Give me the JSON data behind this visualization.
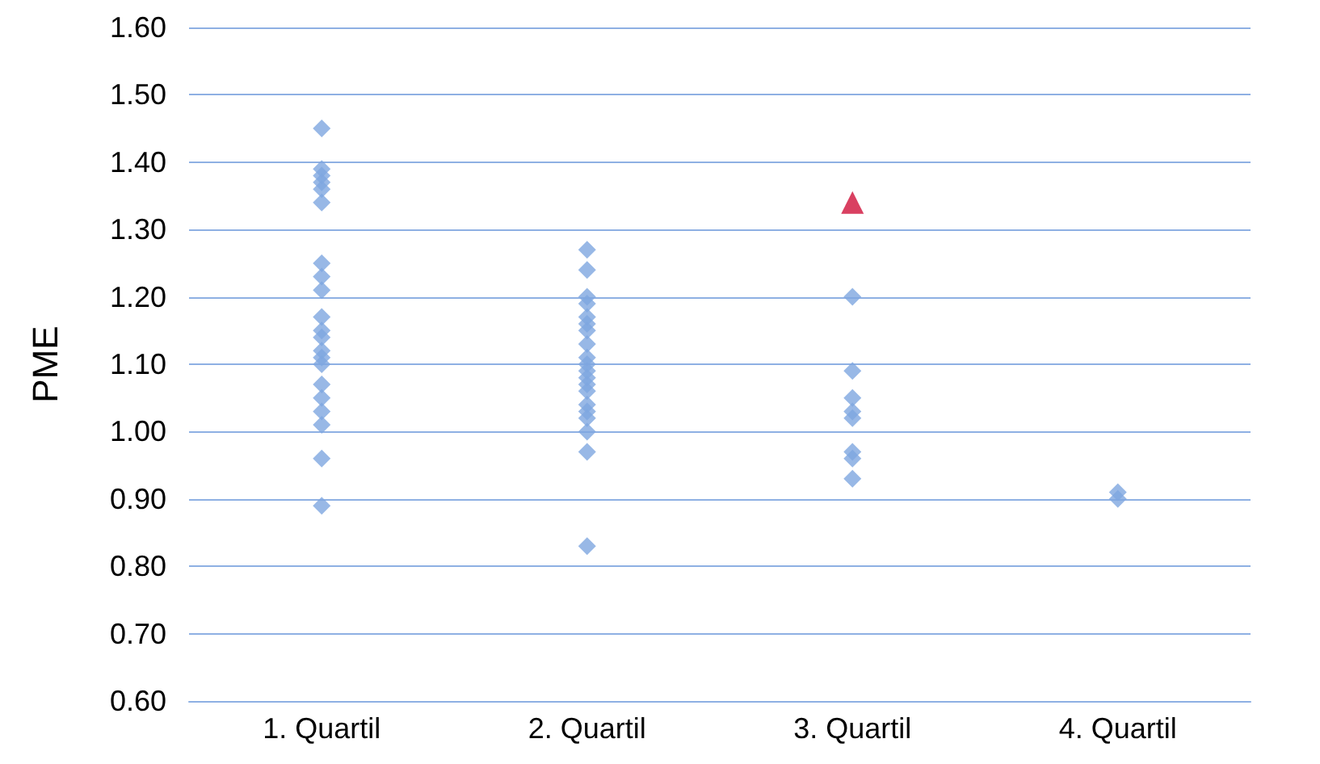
{
  "chart_data": {
    "type": "scatter",
    "ylabel": "PME",
    "categories": [
      "1. Quartil",
      "2. Quartil",
      "3. Quartil",
      "4. Quartil"
    ],
    "series": [
      {
        "color": "#7ea6e0",
        "marker": "diamond",
        "x": [
          "1. Quartil",
          "1. Quartil",
          "1. Quartil",
          "1. Quartil",
          "1. Quartil",
          "1. Quartil",
          "1. Quartil",
          "1. Quartil",
          "1. Quartil",
          "1. Quartil",
          "1. Quartil",
          "1. Quartil",
          "1. Quartil",
          "1. Quartil",
          "1. Quartil",
          "1. Quartil",
          "1. Quartil",
          "1. Quartil",
          "1. Quartil",
          "1. Quartil",
          "1. Quartil",
          "2. Quartil",
          "2. Quartil",
          "2. Quartil",
          "2. Quartil",
          "2. Quartil",
          "2. Quartil",
          "2. Quartil",
          "2. Quartil",
          "2. Quartil",
          "2. Quartil",
          "2. Quartil",
          "2. Quartil",
          "2. Quartil",
          "2. Quartil",
          "2. Quartil",
          "2. Quartil",
          "2. Quartil",
          "2. Quartil",
          "2. Quartil",
          "2. Quartil",
          "3. Quartil",
          "3. Quartil",
          "3. Quartil",
          "3. Quartil",
          "3. Quartil",
          "3. Quartil",
          "3. Quartil",
          "3. Quartil",
          "4. Quartil",
          "4. Quartil"
        ],
        "values": [
          1.45,
          1.39,
          1.38,
          1.37,
          1.36,
          1.34,
          1.25,
          1.23,
          1.21,
          1.17,
          1.15,
          1.14,
          1.12,
          1.11,
          1.1,
          1.07,
          1.05,
          1.03,
          1.01,
          0.96,
          0.89,
          1.27,
          1.24,
          1.2,
          1.19,
          1.17,
          1.16,
          1.15,
          1.13,
          1.11,
          1.1,
          1.09,
          1.08,
          1.07,
          1.06,
          1.04,
          1.03,
          1.02,
          1.0,
          0.97,
          0.83,
          1.2,
          1.09,
          1.05,
          1.03,
          1.02,
          0.97,
          0.96,
          0.93,
          0.91,
          0.9
        ]
      },
      {
        "color": "#d0103a",
        "marker": "triangle",
        "x": [
          "3. Quartil"
        ],
        "values": [
          1.34
        ]
      }
    ],
    "ylim": [
      0.6,
      1.6
    ],
    "yticks": [
      {
        "value": 0.6,
        "label": "0.60"
      },
      {
        "value": 0.7,
        "label": "0.70"
      },
      {
        "value": 0.8,
        "label": "0.80"
      },
      {
        "value": 0.9,
        "label": "0.90"
      },
      {
        "value": 1.0,
        "label": "1.00"
      },
      {
        "value": 1.1,
        "label": "1.10"
      },
      {
        "value": 1.2,
        "label": "1.20"
      },
      {
        "value": 1.3,
        "label": "1.30"
      },
      {
        "value": 1.4,
        "label": "1.40"
      },
      {
        "value": 1.5,
        "label": "1.50"
      },
      {
        "value": 1.6,
        "label": "1.60"
      }
    ],
    "grid": "y"
  }
}
